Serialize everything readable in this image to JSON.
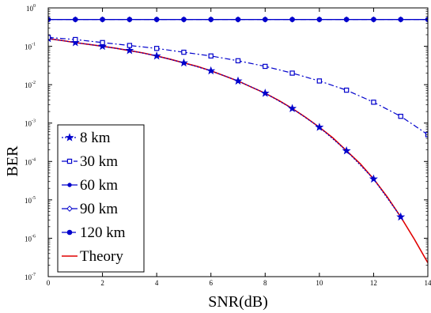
{
  "chart_data": {
    "type": "line",
    "title": "",
    "xlabel": "SNR(dB)",
    "ylabel": "BER",
    "xlim": [
      0,
      14
    ],
    "ylim": [
      1e-07,
      1
    ],
    "y_scale": "log",
    "grid": false,
    "legend_position": "bottom-left",
    "x_ticks": [
      "0",
      "2",
      "4",
      "6",
      "8",
      "10",
      "12",
      "14"
    ],
    "y_tick_base": "10",
    "y_tick_exponents": [
      "-7",
      "-6",
      "-5",
      "-4",
      "-3",
      "-2",
      "-1",
      "0"
    ],
    "series": [
      {
        "name": "8 km",
        "color": "#0000cc",
        "line": "dotted",
        "marker": "star",
        "x": [
          0,
          1,
          2,
          3,
          4,
          5,
          6,
          7,
          8,
          9,
          10,
          11,
          12,
          13
        ],
        "y": [
          0.16,
          0.125,
          0.1,
          0.078,
          0.056,
          0.037,
          0.023,
          0.0125,
          0.006,
          0.0024,
          0.00078,
          0.00019,
          3.5e-05,
          3.6e-06
        ]
      },
      {
        "name": "30 km",
        "color": "#0000cc",
        "line": "dashdot",
        "marker": "square",
        "x": [
          0,
          1,
          2,
          3,
          4,
          5,
          6,
          7,
          8,
          9,
          10,
          11,
          12,
          13,
          14
        ],
        "y": [
          0.17,
          0.15,
          0.125,
          0.105,
          0.088,
          0.07,
          0.056,
          0.042,
          0.03,
          0.02,
          0.0125,
          0.0072,
          0.0035,
          0.0015,
          0.0005
        ]
      },
      {
        "name": "60 km",
        "color": "#0000cc",
        "line": "solid",
        "marker": "dot",
        "x": [
          0,
          1,
          2,
          3,
          4,
          5,
          6,
          7,
          8,
          9,
          10,
          11,
          12,
          13,
          14
        ],
        "y": [
          0.5,
          0.5,
          0.5,
          0.5,
          0.5,
          0.5,
          0.5,
          0.5,
          0.5,
          0.5,
          0.5,
          0.5,
          0.5,
          0.5,
          0.5
        ]
      },
      {
        "name": "90 km",
        "color": "#0000cc",
        "line": "solid",
        "marker": "diamond",
        "x": [
          0,
          1,
          2,
          3,
          4,
          5,
          6,
          7,
          8,
          9,
          10,
          11,
          12,
          13,
          14
        ],
        "y": [
          0.5,
          0.5,
          0.5,
          0.5,
          0.5,
          0.5,
          0.5,
          0.5,
          0.5,
          0.5,
          0.5,
          0.5,
          0.5,
          0.5,
          0.5
        ]
      },
      {
        "name": "120 km",
        "color": "#0000cc",
        "line": "dashed",
        "marker": "circle",
        "x": [
          0,
          1,
          2,
          3,
          4,
          5,
          6,
          7,
          8,
          9,
          10,
          11,
          12,
          13,
          14
        ],
        "y": [
          0.5,
          0.5,
          0.5,
          0.5,
          0.5,
          0.5,
          0.5,
          0.5,
          0.5,
          0.5,
          0.5,
          0.5,
          0.5,
          0.5,
          0.5
        ]
      },
      {
        "name": "Theory",
        "color": "#e00000",
        "line": "solid",
        "marker": "none",
        "x": [
          0,
          0.5,
          1,
          1.5,
          2,
          2.5,
          3,
          3.5,
          4,
          4.5,
          5,
          5.5,
          6,
          6.5,
          7,
          7.5,
          8,
          8.5,
          9,
          9.5,
          10,
          10.5,
          11,
          11.5,
          12,
          12.5,
          13,
          13.5,
          14
        ],
        "y": [
          0.158,
          0.142,
          0.125,
          0.112,
          0.1,
          0.089,
          0.077,
          0.067,
          0.056,
          0.046,
          0.037,
          0.03,
          0.023,
          0.017,
          0.0125,
          0.0086,
          0.006,
          0.0039,
          0.0024,
          0.0014,
          0.00078,
          0.00041,
          0.00019,
          8.8e-05,
          3.5e-05,
          1.2e-05,
          3.6e-06,
          9.5e-07,
          2.3e-07
        ]
      }
    ]
  }
}
